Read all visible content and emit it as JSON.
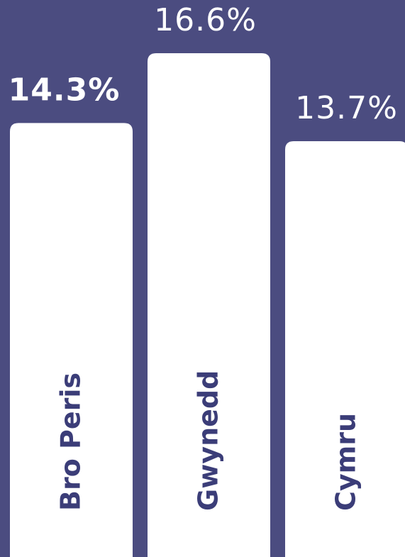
{
  "chart_data": {
    "type": "bar",
    "categories": [
      "Bro Peris",
      "Gwynedd",
      "Cymru"
    ],
    "values": [
      14.3,
      16.6,
      13.7
    ],
    "value_labels": [
      "14.3%",
      "16.6%",
      "13.7%"
    ],
    "color": "#ffffff"
  }
}
